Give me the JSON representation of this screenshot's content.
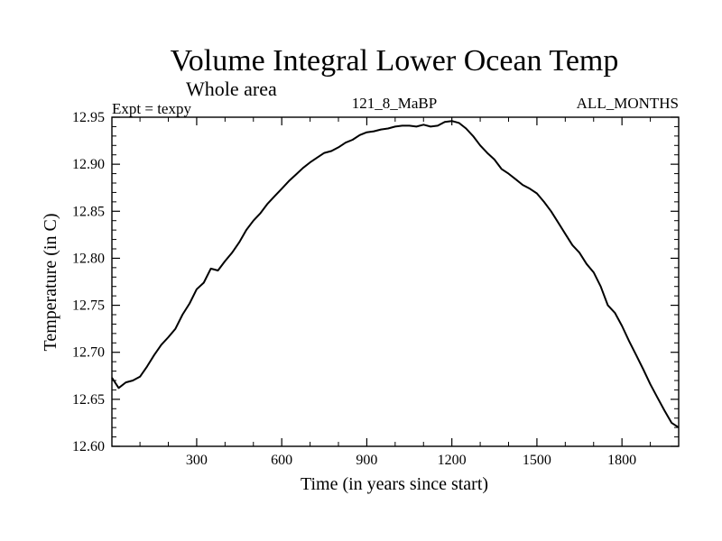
{
  "chart_data": {
    "type": "line",
    "title": "Volume Integral Lower Ocean Temp",
    "subtitle": "Whole area",
    "left_label": "Expt = texpy",
    "center_label": "121_8_MaBP",
    "right_label": "ALL_MONTHS",
    "xlabel": "Time (in years since start)",
    "ylabel": "Temperature (in C)",
    "xlim": [
      1,
      2000
    ],
    "ylim": [
      12.6,
      12.95
    ],
    "xticks": [
      300,
      600,
      900,
      1200,
      1500,
      1800
    ],
    "xtick_labels": [
      "300",
      "600",
      "900",
      "1200",
      "1500",
      "1800"
    ],
    "yticks": [
      12.6,
      12.65,
      12.7,
      12.75,
      12.8,
      12.85,
      12.9,
      12.95
    ],
    "ytick_labels": [
      "12.60",
      "12.65",
      "12.70",
      "12.75",
      "12.80",
      "12.85",
      "12.90",
      "12.95"
    ],
    "series": [
      {
        "name": "texpy",
        "color": "#000000",
        "x": [
          1,
          25,
          50,
          75,
          100,
          125,
          150,
          175,
          200,
          225,
          250,
          275,
          300,
          325,
          350,
          375,
          400,
          425,
          450,
          475,
          500,
          525,
          550,
          575,
          600,
          625,
          650,
          675,
          700,
          725,
          750,
          775,
          800,
          825,
          850,
          875,
          900,
          925,
          950,
          975,
          1000,
          1025,
          1050,
          1075,
          1100,
          1125,
          1150,
          1175,
          1200,
          1225,
          1250,
          1275,
          1300,
          1325,
          1350,
          1375,
          1400,
          1425,
          1450,
          1475,
          1500,
          1525,
          1550,
          1575,
          1600,
          1625,
          1650,
          1675,
          1700,
          1725,
          1750,
          1775,
          1800,
          1825,
          1850,
          1875,
          1900,
          1925,
          1950,
          1975,
          2000
        ],
        "values": [
          12.673,
          12.662,
          12.668,
          12.67,
          12.674,
          12.685,
          12.697,
          12.708,
          12.716,
          12.725,
          12.74,
          12.752,
          12.767,
          12.774,
          12.789,
          12.787,
          12.797,
          12.806,
          12.817,
          12.83,
          12.84,
          12.848,
          12.858,
          12.866,
          12.874,
          12.882,
          12.889,
          12.896,
          12.902,
          12.907,
          12.912,
          12.914,
          12.918,
          12.923,
          12.926,
          12.931,
          12.934,
          12.935,
          12.937,
          12.938,
          12.94,
          12.941,
          12.941,
          12.94,
          12.942,
          12.94,
          12.941,
          12.945,
          12.946,
          12.944,
          12.938,
          12.93,
          12.92,
          12.912,
          12.905,
          12.895,
          12.89,
          12.884,
          12.878,
          12.874,
          12.869,
          12.86,
          12.85,
          12.838,
          12.826,
          12.814,
          12.806,
          12.794,
          12.785,
          12.77,
          12.75,
          12.742,
          12.728,
          12.712,
          12.697,
          12.682,
          12.666,
          12.652,
          12.638,
          12.625,
          12.62
        ]
      }
    ]
  }
}
